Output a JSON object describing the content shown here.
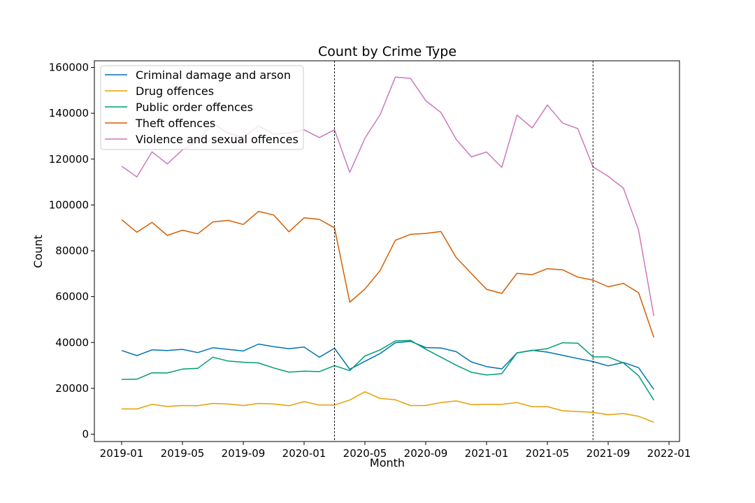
{
  "chart_data": {
    "type": "line",
    "title": "Count by Crime Type",
    "xlabel": "Month",
    "ylabel": "Count",
    "ylim": [
      0,
      160000
    ],
    "xlim": [
      "2018-12",
      "2022-01"
    ],
    "x_ticks": [
      "2019-01",
      "2019-05",
      "2019-09",
      "2020-01",
      "2020-05",
      "2020-09",
      "2021-01",
      "2021-05",
      "2021-09",
      "2022-01"
    ],
    "y_ticks": [
      0,
      20000,
      40000,
      60000,
      80000,
      100000,
      120000,
      140000,
      160000
    ],
    "y_tick_labels": [
      "0",
      "20000",
      "40000",
      "60000",
      "80000",
      "100000",
      "120000",
      "140000",
      "160000"
    ],
    "vlines": [
      "2020-03",
      "2021-08"
    ],
    "grid": false,
    "legend_position": "upper-left",
    "x": [
      "2019-01",
      "2019-02",
      "2019-03",
      "2019-04",
      "2019-05",
      "2019-06",
      "2019-07",
      "2019-08",
      "2019-09",
      "2019-10",
      "2019-11",
      "2019-12",
      "2020-01",
      "2020-02",
      "2020-03",
      "2020-04",
      "2020-05",
      "2020-06",
      "2020-07",
      "2020-08",
      "2020-09",
      "2020-10",
      "2020-11",
      "2020-12",
      "2021-01",
      "2021-02",
      "2021-03",
      "2021-04",
      "2021-05",
      "2021-06",
      "2021-07",
      "2021-08",
      "2021-09",
      "2021-10",
      "2021-11",
      "2021-12"
    ],
    "series": [
      {
        "name": "Criminal damage and arson",
        "color": "#0072b2",
        "values": [
          36500,
          34300,
          36800,
          36500,
          37000,
          35600,
          37700,
          37000,
          36300,
          39300,
          38200,
          37300,
          38000,
          33600,
          37500,
          28300,
          31800,
          35200,
          39900,
          40500,
          37800,
          37600,
          36000,
          31500,
          29500,
          28500,
          35400,
          36600,
          35800,
          34400,
          33000,
          31700,
          29800,
          31300,
          29000,
          19500
        ]
      },
      {
        "name": "Drug offences",
        "color": "#e69f00",
        "values": [
          11000,
          11000,
          13000,
          12100,
          12500,
          12400,
          13400,
          13200,
          12500,
          13400,
          13200,
          12400,
          14200,
          12700,
          12700,
          14900,
          18500,
          15600,
          15000,
          12500,
          12500,
          13800,
          14500,
          12900,
          13000,
          13000,
          13800,
          12000,
          12000,
          10200,
          9900,
          9500,
          8500,
          9000,
          7800,
          5200
        ]
      },
      {
        "name": "Public order offences",
        "color": "#009e73",
        "values": [
          23900,
          24000,
          26800,
          26700,
          28400,
          28700,
          33600,
          31900,
          31400,
          31100,
          28900,
          27100,
          27500,
          27300,
          29900,
          27700,
          34100,
          36800,
          40700,
          40900,
          37100,
          33600,
          30100,
          27000,
          25800,
          26400,
          35500,
          36500,
          37300,
          39900,
          39700,
          33700,
          33700,
          31100,
          25500,
          14800
        ]
      },
      {
        "name": "Theft offences",
        "color": "#d55e00",
        "values": [
          93600,
          88100,
          92400,
          86700,
          89000,
          87400,
          92600,
          93300,
          91500,
          97200,
          95600,
          88300,
          94400,
          93700,
          90000,
          57600,
          63300,
          71400,
          84600,
          87200,
          87600,
          88400,
          77100,
          70100,
          63200,
          61400,
          70200,
          69600,
          72200,
          71700,
          68500,
          67200,
          64300,
          65800,
          61700,
          42200
        ]
      },
      {
        "name": "Violence and sexual offences",
        "color": "#cc78bc",
        "values": [
          116900,
          112200,
          123200,
          117900,
          124000,
          127800,
          135700,
          131300,
          129500,
          134500,
          130800,
          131400,
          132800,
          129400,
          132800,
          114200,
          129100,
          139400,
          155800,
          155200,
          145500,
          140300,
          128600,
          121000,
          123100,
          116400,
          139200,
          133600,
          143600,
          135700,
          133300,
          116600,
          112500,
          107300,
          89000,
          51500
        ]
      }
    ]
  }
}
